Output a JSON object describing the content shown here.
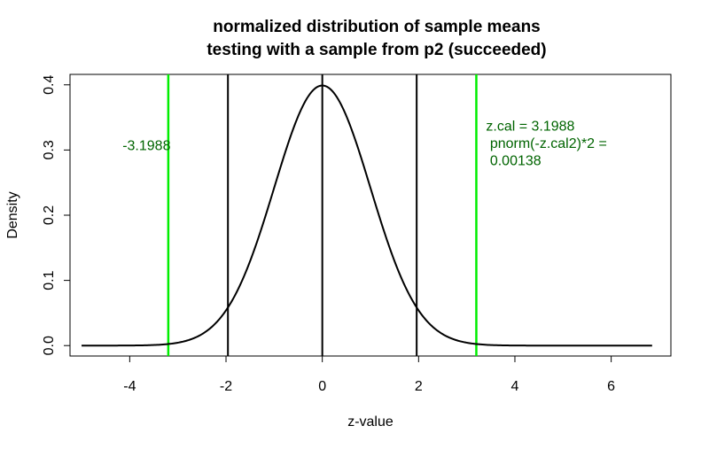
{
  "chart_data": {
    "type": "line",
    "title": "normalized distribution of sample means",
    "subtitle": "testing with a sample from p2 (succeeded)",
    "xlabel": "z-value",
    "ylabel": "Density",
    "xlim": [
      -5.24,
      7.24
    ],
    "ylim": [
      -0.016,
      0.416
    ],
    "x_ticks": [
      -4,
      -2,
      0,
      2,
      4,
      6
    ],
    "x_tick_labels": [
      "-4",
      "-2",
      "0",
      "2",
      "4",
      "6"
    ],
    "y_ticks": [
      0.0,
      0.1,
      0.2,
      0.3,
      0.4
    ],
    "y_tick_labels": [
      "0.0",
      "0.1",
      "0.2",
      "0.3",
      "0.4"
    ],
    "grid": false,
    "legend": "none",
    "series": [
      {
        "curve": "standard normal density",
        "x_range": [
          -5,
          6.85
        ],
        "color": "#000000"
      }
    ],
    "vlines": [
      {
        "x": -1.96,
        "color": "#000000"
      },
      {
        "x": 0,
        "color": "#000000"
      },
      {
        "x": 1.96,
        "color": "#000000"
      },
      {
        "x": -3.1988,
        "color": "#00ee00"
      },
      {
        "x": 3.1988,
        "color": "#00ee00"
      }
    ],
    "annotations": [
      {
        "lines": [
          "-3.1988"
        ],
        "x": -4.15,
        "y": 0.3,
        "color": "#006400"
      },
      {
        "lines": [
          "z.cal = 3.1988",
          " pnorm(-z.cal2)*2 =",
          " 0.00138"
        ],
        "x": 3.4,
        "y": 0.33,
        "color": "#006400"
      }
    ]
  }
}
